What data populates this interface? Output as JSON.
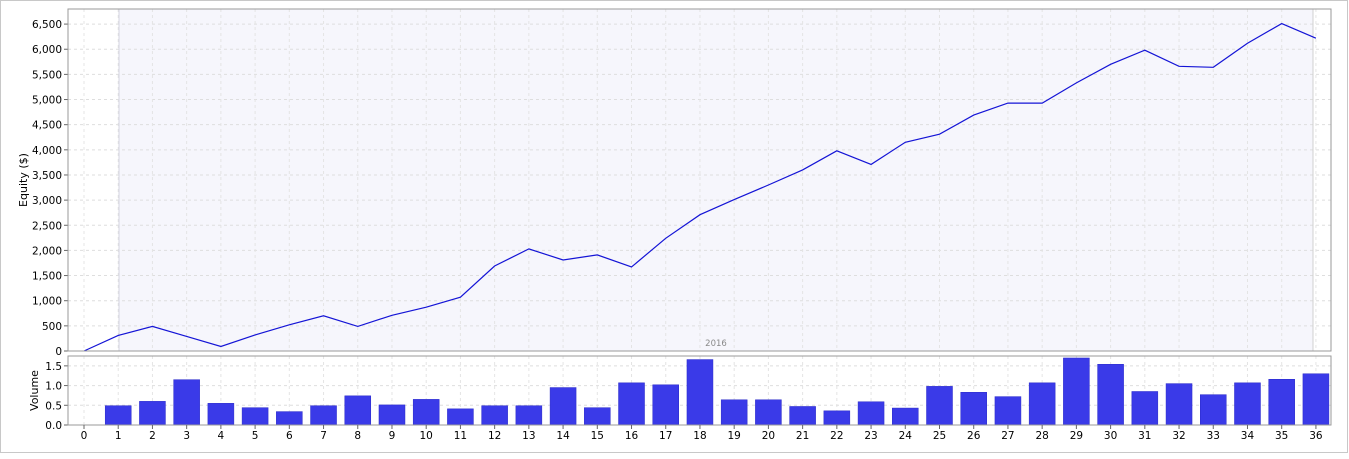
{
  "chart_data": [
    {
      "type": "line",
      "ylabel": "Equity ($)",
      "period_label": "2016",
      "ylim": [
        0,
        6800
      ],
      "yticks": [
        0,
        500,
        1000,
        1500,
        2000,
        2500,
        3000,
        3500,
        4000,
        4500,
        5000,
        5500,
        6000,
        6500
      ],
      "ytick_labels": [
        "0",
        "500",
        "1,000",
        "1,500",
        "2,000",
        "2,500",
        "3,000",
        "3,500",
        "4,000",
        "4,500",
        "5,000",
        "5,500",
        "6,000",
        "6,500"
      ],
      "grid": true,
      "series": [
        {
          "color": "#1414d6",
          "x": [
            0,
            1,
            2,
            3,
            4,
            5,
            6,
            7,
            8,
            9,
            10,
            11,
            12,
            13,
            14,
            15,
            16,
            17,
            18,
            19,
            20,
            21,
            22,
            23,
            24,
            25,
            26,
            27,
            28,
            29,
            30,
            31,
            32,
            33,
            34,
            35,
            36
          ],
          "values": [
            0,
            310,
            490,
            290,
            90,
            320,
            520,
            700,
            490,
            710,
            870,
            1070,
            1690,
            2030,
            1810,
            1910,
            1670,
            2240,
            2710,
            3010,
            3300,
            3600,
            3980,
            3710,
            4150,
            4310,
            4690,
            4930,
            4930,
            5330,
            5700,
            5980,
            5660,
            5640,
            6120,
            6510,
            6220
          ]
        }
      ]
    },
    {
      "type": "bar",
      "ylabel": "Volume",
      "ylim": [
        0,
        1.75
      ],
      "yticks": [
        0,
        0.5,
        1.0,
        1.5
      ],
      "ytick_labels": [
        "0.0",
        "0.5",
        "1.0",
        "1.5"
      ],
      "grid": true,
      "color": "#3a3ae8",
      "categories": [
        "0",
        "1",
        "2",
        "3",
        "4",
        "5",
        "6",
        "7",
        "8",
        "9",
        "10",
        "11",
        "12",
        "13",
        "14",
        "15",
        "16",
        "17",
        "18",
        "19",
        "20",
        "21",
        "22",
        "23",
        "24",
        "25",
        "26",
        "27",
        "28",
        "29",
        "30",
        "31",
        "32",
        "33",
        "34",
        "35",
        "36"
      ],
      "values": [
        0,
        0.49,
        0.6,
        1.15,
        0.55,
        0.44,
        0.34,
        0.49,
        0.74,
        0.51,
        0.65,
        0.41,
        0.49,
        0.49,
        0.95,
        0.44,
        1.07,
        1.02,
        1.66,
        0.64,
        0.64,
        0.47,
        0.36,
        0.59,
        0.43,
        0.98,
        0.83,
        0.72,
        1.07,
        1.7,
        1.54,
        0.85,
        1.05,
        0.77,
        1.07,
        1.16,
        1.3
      ]
    }
  ]
}
